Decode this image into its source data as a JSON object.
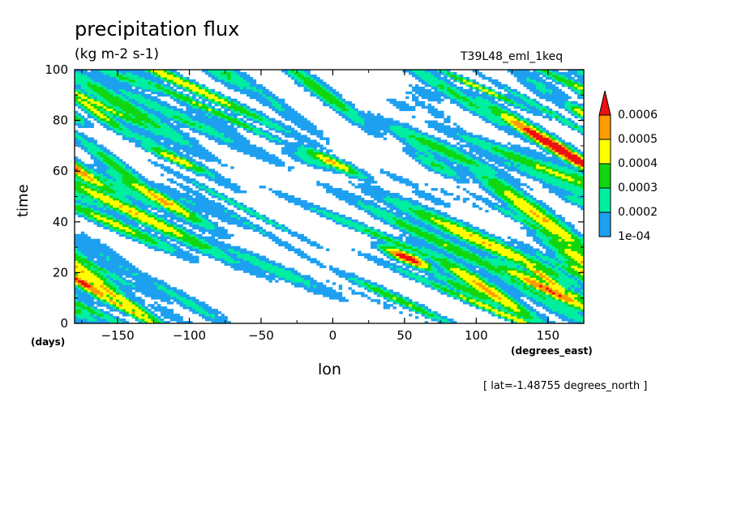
{
  "chart_data": {
    "type": "heatmap",
    "title": "precipitation flux",
    "subtitle": "(kg m-2 s-1)",
    "run_label": "T39L48_eml_1keq",
    "xlabel": "lon",
    "xunit": "(degrees_east)",
    "ylabel": "time",
    "yunit": "(days)",
    "note": "[ lat=-1.48755 degrees_north ]",
    "xlim": [
      -180,
      175
    ],
    "ylim": [
      0,
      100
    ],
    "x_ticks": [
      -150,
      -100,
      -50,
      0,
      50,
      100,
      150
    ],
    "y_ticks": [
      0,
      20,
      40,
      60,
      80,
      100
    ],
    "colorbar": {
      "labels": [
        "1e-04",
        "0.0002",
        "0.0003",
        "0.0004",
        "0.0005",
        "0.0006"
      ],
      "levels": [
        0.0001,
        0.0002,
        0.0003,
        0.0004,
        0.0005,
        0.0006
      ],
      "colors": [
        "#1ea0f0",
        "#00eea0",
        "#11d611",
        "#ffff00",
        "#ff9c00",
        "#ee1111"
      ],
      "extend": "max"
    },
    "field_description": "westward-propagating precipitation streaks, mostly 1e-04 to 0.0003, sparse maxima above 0.0006"
  }
}
